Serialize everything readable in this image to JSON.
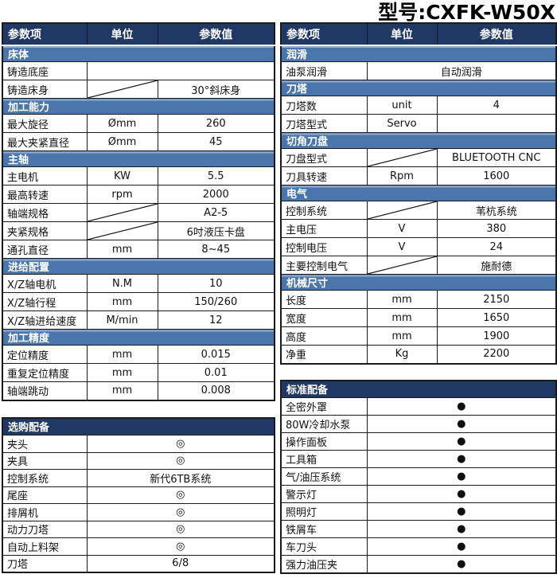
{
  "title": "型号:CXFK-W50X",
  "column_headers": [
    "参数项",
    "单位",
    "参数值"
  ],
  "colors": {
    "header_bg": "#1f3864",
    "section_bg": "#4b76ab",
    "section_highlight": "#8faccd",
    "grid_border": "#1a1a1a"
  },
  "left_table": {
    "rows": [
      {
        "section": "床体"
      },
      {
        "label": "铸造底座",
        "merged": ""
      },
      {
        "label": "铸造床身",
        "slash": true,
        "value": "30°斜床身"
      },
      {
        "section": "加工能力"
      },
      {
        "label": "最大旋径",
        "unit": "Ømm",
        "value": "260"
      },
      {
        "label": "最大夹紧直径",
        "unit": "Ømm",
        "value": "45"
      },
      {
        "section": "主轴"
      },
      {
        "label": "主电机",
        "unit": "KW",
        "value": "5.5"
      },
      {
        "label": "最高转速",
        "unit": "rpm",
        "value": "2000"
      },
      {
        "label": "轴端规格",
        "slash": true,
        "value": "A2-5"
      },
      {
        "label": "夹紧规格",
        "slash": true,
        "value": "6吋液压卡盘"
      },
      {
        "label": "通孔直径",
        "unit": "mm",
        "value": "8~45"
      },
      {
        "section": "进给配置"
      },
      {
        "label": "X/Z轴电机",
        "unit": "N.M",
        "value": "10"
      },
      {
        "label": "X/Z轴行程",
        "unit": "mm",
        "value": "150/260"
      },
      {
        "label": "X/Z轴进给速度",
        "unit": "M/min",
        "value": "12"
      },
      {
        "section": "加工精度"
      },
      {
        "label": "定位精度",
        "unit": "mm",
        "value": "0.015"
      },
      {
        "label": "重复定位精度",
        "unit": "mm",
        "value": "0.01"
      },
      {
        "label": "轴端跳动",
        "unit": "mm",
        "value": "0.008"
      }
    ]
  },
  "right_table": {
    "rows": [
      {
        "section": "润滑"
      },
      {
        "label": "油泵润滑",
        "merged": "自动润滑"
      },
      {
        "section": "刀塔"
      },
      {
        "label": "刀塔数",
        "unit": "unit",
        "value": "4"
      },
      {
        "label": "刀塔型式",
        "unit": "Servo",
        "value": ""
      },
      {
        "section": "切角刀盘"
      },
      {
        "label": "刀盘型式",
        "slash": true,
        "value": "BLUETOOTH CNC"
      },
      {
        "label": "刀具转速",
        "unit": "Rpm",
        "value": "1600"
      },
      {
        "section": "电气"
      },
      {
        "label": "控制系统",
        "slash": true,
        "value": "苇杭系统"
      },
      {
        "label": "主电压",
        "unit": "V",
        "value": "380"
      },
      {
        "label": "控制电压",
        "unit": "V",
        "value": "24"
      },
      {
        "label": "主要控制电气",
        "slash": true,
        "value": "施耐德"
      },
      {
        "section": "机械尺寸"
      },
      {
        "label": "长度",
        "unit": "mm",
        "value": "2150"
      },
      {
        "label": "宽度",
        "unit": "mm",
        "value": "1650"
      },
      {
        "label": "高度",
        "unit": "mm",
        "value": "1900"
      },
      {
        "label": "净重",
        "unit": "Kg",
        "value": "2200"
      }
    ]
  },
  "optional_table": {
    "title": "选购配备",
    "rows": [
      {
        "label": "夹头",
        "value": "◎",
        "style": "symbol"
      },
      {
        "label": "夹具",
        "value": "◎",
        "style": "symbol"
      },
      {
        "label": "控制系统",
        "value": "新代6TB系统",
        "style": "big"
      },
      {
        "label": "尾座",
        "value": "◎",
        "style": "symbol"
      },
      {
        "label": "排屑机",
        "value": "◎",
        "style": "symbol"
      },
      {
        "label": "动力刀塔",
        "value": "◎",
        "style": "symbol"
      },
      {
        "label": "自动上料架",
        "value": "◎",
        "style": "symbol"
      },
      {
        "label": "刀塔",
        "value": "6/8",
        "style": "big"
      }
    ]
  },
  "standard_table": {
    "title": "标准配备",
    "rows": [
      {
        "label": "全密外罩",
        "value": "●",
        "style": "dot"
      },
      {
        "label": "80W冷却水泵",
        "value": "●",
        "style": "dot"
      },
      {
        "label": "操作面板",
        "value": "●",
        "style": "dot"
      },
      {
        "label": "工具箱",
        "value": "●",
        "style": "dot"
      },
      {
        "label": "气/油压系统",
        "value": "●",
        "style": "dot"
      },
      {
        "label": "警示灯",
        "value": "●",
        "style": "dot"
      },
      {
        "label": "照明灯",
        "value": "●",
        "style": "dot"
      },
      {
        "label": "铁屑车",
        "value": "●",
        "style": "dot"
      },
      {
        "label": "车刀头",
        "value": "●",
        "style": "dot"
      },
      {
        "label": "强力油压夹",
        "value": "●",
        "style": "dot"
      }
    ]
  }
}
